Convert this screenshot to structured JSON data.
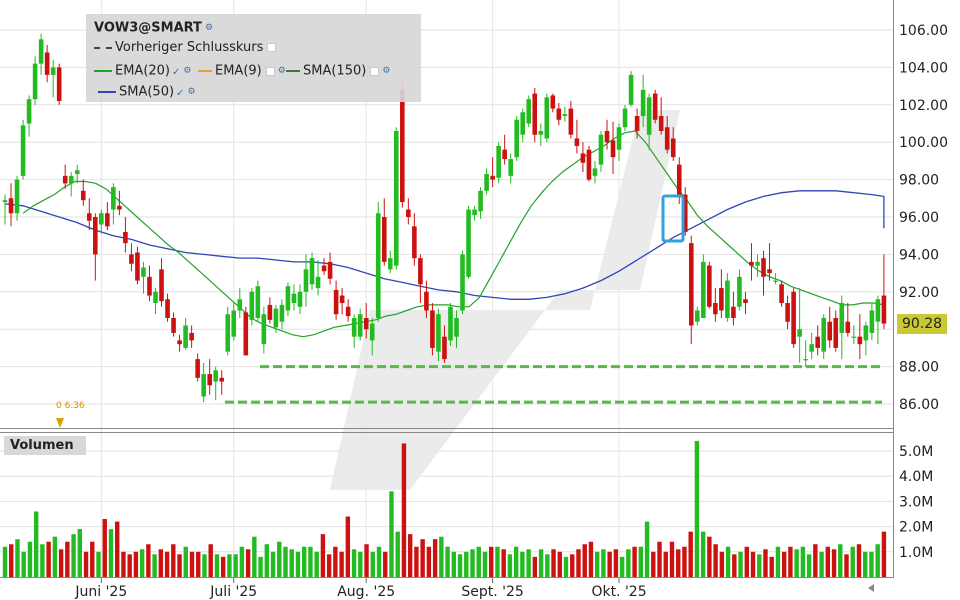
{
  "legend": {
    "symbol": "VOW3@SMART",
    "prev_close": "Vorheriger Schlusskurs",
    "ema20": "EMA(20)",
    "ema9": "EMA(9)",
    "sma150": "SMA(150)",
    "sma50": "SMA(50)"
  },
  "volume_label": "Volumen",
  "last_price_label": "90.28",
  "marker_label": "0 6.36",
  "colors": {
    "up": "#22bb22",
    "down": "#cc1111",
    "sma50": "#2e46b8",
    "ema20": "#22a22a",
    "ema9": "#e8a030",
    "sma150": "#3a7a2a",
    "support": "#55bb44",
    "highlight": "#33a0e0",
    "price_tag": "#c9c934"
  },
  "chart_data": [
    {
      "type": "candlestick",
      "title": "VOW3@SMART",
      "xlabel": "",
      "ylabel": "",
      "ylim": [
        85,
        107
      ],
      "y_ticks": [
        "106.00",
        "104.00",
        "102.00",
        "100.00",
        "98.00",
        "96.00",
        "94.00",
        "92.00",
        "90.00",
        "88.00",
        "86.00"
      ],
      "x_ticks": [
        "Juni '25",
        "Juli '25",
        "Aug. '25",
        "Sept. '25",
        "Okt. '25"
      ],
      "x_tick_index": [
        16,
        38,
        60,
        81,
        102
      ],
      "grid": true,
      "last_value": 90.28,
      "support_levels": [
        88.0,
        86.1
      ],
      "ohlc": [
        [
          96.8,
          97.2,
          95.6,
          96.9
        ],
        [
          97.0,
          97.8,
          95.5,
          96.2
        ],
        [
          96.2,
          98.2,
          95.8,
          98.0
        ],
        [
          98.2,
          101.2,
          98.0,
          100.9
        ],
        [
          101.0,
          102.5,
          100.3,
          102.3
        ],
        [
          102.3,
          104.6,
          102.0,
          104.2
        ],
        [
          104.2,
          105.8,
          103.6,
          105.5
        ],
        [
          104.8,
          105.2,
          103.2,
          103.6
        ],
        [
          103.6,
          104.4,
          102.4,
          104.0
        ],
        [
          104.0,
          104.2,
          102.0,
          102.2
        ],
        [
          98.2,
          98.8,
          97.5,
          97.8
        ],
        [
          97.8,
          98.4,
          97.1,
          98.2
        ],
        [
          98.3,
          98.8,
          97.8,
          98.5
        ],
        [
          97.4,
          98.0,
          96.6,
          96.9
        ],
        [
          96.2,
          97.0,
          95.3,
          95.8
        ],
        [
          96.0,
          96.2,
          92.6,
          94.0
        ],
        [
          95.6,
          96.4,
          95.1,
          96.2
        ],
        [
          96.2,
          96.8,
          95.3,
          95.5
        ],
        [
          96.4,
          97.8,
          95.6,
          97.6
        ],
        [
          96.6,
          97.4,
          96.1,
          96.4
        ],
        [
          95.2,
          96.0,
          94.1,
          94.6
        ],
        [
          94.0,
          94.6,
          93.1,
          93.5
        ],
        [
          94.1,
          94.4,
          92.4,
          92.6
        ],
        [
          92.8,
          93.6,
          91.9,
          93.3
        ],
        [
          92.8,
          93.4,
          91.5,
          91.8
        ],
        [
          91.4,
          92.2,
          90.8,
          92.0
        ],
        [
          93.2,
          93.8,
          91.2,
          91.5
        ],
        [
          91.6,
          91.9,
          90.4,
          90.6
        ],
        [
          90.6,
          90.9,
          89.6,
          89.8
        ],
        [
          89.4,
          89.7,
          88.8,
          89.2
        ],
        [
          89.0,
          90.6,
          88.9,
          90.2
        ],
        [
          89.8,
          90.2,
          89.0,
          89.4
        ],
        [
          88.4,
          88.7,
          87.2,
          87.4
        ],
        [
          86.4,
          88.2,
          86.1,
          87.6
        ],
        [
          87.6,
          88.4,
          86.5,
          87.0
        ],
        [
          87.2,
          88.0,
          86.2,
          87.8
        ],
        [
          87.4,
          87.8,
          86.5,
          87.2
        ],
        [
          88.8,
          91.2,
          88.6,
          90.8
        ],
        [
          89.6,
          91.4,
          89.4,
          91.0
        ],
        [
          91.0,
          92.2,
          90.6,
          91.6
        ],
        [
          90.9,
          91.2,
          88.6,
          88.6
        ],
        [
          90.5,
          92.2,
          90.2,
          92.0
        ],
        [
          90.6,
          92.6,
          90.4,
          92.3
        ],
        [
          89.2,
          91.2,
          88.7,
          90.8
        ],
        [
          91.3,
          91.7,
          90.3,
          90.5
        ],
        [
          90.1,
          91.3,
          89.8,
          91.1
        ],
        [
          90.4,
          91.6,
          90.0,
          91.3
        ],
        [
          91.0,
          92.5,
          90.7,
          92.3
        ],
        [
          91.4,
          92.4,
          91.0,
          91.9
        ],
        [
          91.2,
          92.4,
          90.8,
          92.0
        ],
        [
          92.0,
          94.0,
          91.2,
          93.2
        ],
        [
          92.4,
          94.1,
          92.1,
          93.8
        ],
        [
          92.2,
          93.7,
          91.8,
          92.8
        ],
        [
          93.4,
          93.8,
          92.9,
          93.1
        ],
        [
          93.6,
          94.1,
          92.4,
          92.7
        ],
        [
          92.1,
          92.6,
          90.5,
          90.8
        ],
        [
          91.8,
          92.2,
          90.8,
          91.4
        ],
        [
          91.2,
          91.6,
          90.4,
          90.7
        ],
        [
          89.6,
          90.8,
          89.0,
          90.6
        ],
        [
          89.6,
          91.1,
          89.4,
          90.8
        ],
        [
          90.6,
          91.4,
          89.5,
          90.0
        ],
        [
          89.4,
          90.6,
          88.6,
          90.3
        ],
        [
          90.6,
          96.8,
          90.4,
          96.2
        ],
        [
          96.0,
          97.0,
          93.4,
          93.6
        ],
        [
          93.2,
          94.2,
          93.0,
          93.8
        ],
        [
          93.4,
          100.8,
          93.2,
          100.6
        ],
        [
          102.8,
          103.2,
          96.5,
          96.8
        ],
        [
          96.4,
          97.0,
          95.6,
          96.0
        ],
        [
          95.5,
          96.2,
          93.4,
          93.8
        ],
        [
          93.8,
          94.0,
          91.4,
          92.4
        ],
        [
          92.0,
          92.6,
          90.6,
          91.0
        ],
        [
          91.0,
          91.4,
          88.6,
          89.0
        ],
        [
          88.8,
          91.1,
          88.3,
          90.8
        ],
        [
          89.6,
          90.2,
          88.2,
          88.4
        ],
        [
          89.4,
          91.4,
          89.1,
          91.2
        ],
        [
          89.6,
          91.0,
          89.0,
          90.6
        ],
        [
          91.0,
          94.2,
          90.8,
          94.0
        ],
        [
          92.8,
          96.6,
          92.7,
          96.4
        ],
        [
          96.1,
          96.6,
          95.8,
          96.4
        ],
        [
          96.3,
          97.6,
          95.9,
          97.4
        ],
        [
          97.4,
          98.6,
          97.2,
          98.3
        ],
        [
          98.2,
          99.2,
          97.6,
          98.0
        ],
        [
          98.1,
          100.0,
          97.8,
          99.8
        ],
        [
          99.6,
          100.4,
          98.8,
          99.1
        ],
        [
          98.2,
          99.4,
          97.8,
          99.1
        ],
        [
          99.2,
          101.4,
          99.0,
          101.2
        ],
        [
          100.4,
          101.8,
          100.0,
          101.6
        ],
        [
          101.0,
          102.5,
          100.8,
          102.3
        ],
        [
          102.6,
          102.9,
          100.0,
          100.4
        ],
        [
          100.4,
          101.0,
          99.8,
          100.6
        ],
        [
          100.2,
          102.6,
          100.0,
          102.4
        ],
        [
          102.5,
          102.6,
          101.6,
          101.8
        ],
        [
          101.8,
          102.1,
          100.9,
          101.2
        ],
        [
          101.4,
          101.9,
          101.1,
          101.5
        ],
        [
          101.8,
          102.2,
          100.2,
          100.4
        ],
        [
          100.2,
          101.2,
          99.4,
          99.8
        ],
        [
          99.4,
          100.0,
          98.4,
          98.9
        ],
        [
          99.6,
          99.8,
          97.9,
          98.0
        ],
        [
          98.2,
          99.0,
          97.8,
          98.6
        ],
        [
          98.8,
          100.6,
          98.4,
          100.4
        ],
        [
          100.6,
          101.2,
          99.6,
          100.0
        ],
        [
          100.1,
          101.1,
          98.3,
          99.2
        ],
        [
          99.6,
          101.0,
          99.0,
          100.8
        ],
        [
          100.8,
          102.0,
          100.6,
          101.8
        ],
        [
          102.0,
          103.8,
          101.9,
          103.6
        ],
        [
          101.4,
          101.8,
          100.2,
          100.6
        ],
        [
          101.4,
          103.6,
          100.8,
          102.8
        ],
        [
          100.4,
          102.6,
          99.6,
          102.4
        ],
        [
          102.6,
          102.8,
          101.0,
          101.2
        ],
        [
          101.4,
          102.4,
          100.4,
          100.6
        ],
        [
          100.8,
          101.4,
          99.4,
          99.6
        ],
        [
          100.2,
          100.8,
          99.0,
          99.2
        ],
        [
          98.8,
          99.2,
          96.7,
          97.2
        ],
        [
          97.2,
          97.6,
          95.0,
          95.2
        ],
        [
          94.6,
          95.0,
          89.2,
          90.2
        ],
        [
          90.4,
          91.2,
          90.2,
          91.0
        ],
        [
          90.6,
          94.0,
          90.6,
          93.6
        ],
        [
          93.4,
          93.6,
          91.1,
          91.2
        ],
        [
          91.4,
          92.2,
          90.4,
          90.8
        ],
        [
          92.2,
          93.2,
          90.6,
          91.0
        ],
        [
          90.6,
          93.0,
          90.4,
          92.6
        ],
        [
          91.2,
          92.0,
          90.2,
          90.6
        ],
        [
          91.2,
          93.2,
          91.0,
          92.8
        ],
        [
          91.6,
          92.0,
          90.8,
          91.4
        ],
        [
          93.6,
          94.6,
          92.6,
          93.4
        ],
        [
          93.4,
          94.0,
          92.8,
          93.6
        ],
        [
          93.8,
          94.2,
          91.8,
          92.8
        ],
        [
          93.2,
          94.6,
          92.6,
          93.0
        ],
        [
          92.6,
          93.0,
          92.4,
          92.6
        ],
        [
          92.4,
          92.6,
          91.2,
          91.4
        ],
        [
          91.4,
          91.8,
          90.0,
          90.4
        ],
        [
          92.0,
          92.2,
          89.0,
          89.2
        ],
        [
          89.6,
          92.2,
          88.2,
          90.0
        ],
        [
          88.4,
          89.4,
          88.0,
          88.4
        ],
        [
          88.8,
          89.8,
          88.4,
          89.2
        ],
        [
          89.6,
          90.2,
          88.6,
          89.0
        ],
        [
          88.8,
          90.8,
          88.4,
          90.6
        ],
        [
          90.4,
          91.2,
          89.0,
          89.4
        ],
        [
          90.6,
          91.0,
          88.8,
          89.0
        ],
        [
          89.8,
          91.8,
          88.4,
          91.4
        ],
        [
          90.4,
          91.4,
          89.6,
          89.8
        ],
        [
          89.6,
          90.2,
          89.2,
          89.6
        ],
        [
          89.6,
          90.8,
          88.4,
          89.2
        ],
        [
          89.4,
          90.4,
          88.6,
          90.2
        ],
        [
          89.8,
          91.4,
          89.4,
          91.0
        ],
        [
          90.4,
          91.8,
          89.2,
          91.6
        ],
        [
          91.8,
          94.0,
          90.0,
          90.3
        ]
      ],
      "ema20": [
        96.2,
        96.6,
        96.9,
        97.2,
        97.6,
        97.9,
        97.9,
        97.8,
        97.5,
        97.0,
        96.5,
        96.0,
        95.5,
        95.0,
        94.5,
        94.1,
        93.6,
        93.1,
        92.6,
        92.1,
        91.6,
        91.1,
        90.6,
        90.3,
        90.1,
        89.9,
        89.7,
        89.6,
        89.7,
        89.9,
        90.1,
        90.2,
        90.3,
        90.4,
        90.5,
        90.7,
        90.8,
        91.0,
        91.2,
        91.3,
        91.3,
        91.3,
        91.2,
        91.2,
        91.7,
        92.7,
        93.7,
        94.7,
        95.7,
        96.6,
        97.3,
        97.9,
        98.4,
        98.8,
        99.2,
        99.5,
        99.8,
        100.2,
        100.5,
        100.6,
        100.0,
        99.2,
        98.4,
        97.6,
        96.9,
        96.1,
        95.5,
        95.0,
        94.5,
        94.0,
        93.5,
        93.1,
        92.8,
        92.6,
        92.3,
        92.1,
        91.9,
        91.7,
        91.5,
        91.3,
        91.3,
        91.4,
        91.4,
        91.3
      ],
      "ema20_start": 3,
      "sma50": [
        96.7,
        96.6,
        96.3,
        96.0,
        95.7,
        95.3,
        95.0,
        94.8,
        94.5,
        94.3,
        94.1,
        94.0,
        93.9,
        93.8,
        93.8,
        93.7,
        93.6,
        93.6,
        93.5,
        93.3,
        93.0,
        92.7,
        92.5,
        92.3,
        92.1,
        92.0,
        91.8,
        91.7,
        91.6,
        91.6,
        91.7,
        91.9,
        92.2,
        92.6,
        93.1,
        93.7,
        94.3,
        94.9,
        95.4,
        95.9,
        96.4,
        96.8,
        97.1,
        97.3,
        97.4,
        97.4,
        97.4,
        97.3,
        97.2,
        97.1,
        96.9,
        96.6,
        96.3,
        96.0,
        95.7,
        95.4
      ],
      "sma50_step": 3
    },
    {
      "type": "bar",
      "title": "Volumen",
      "xlabel": "",
      "ylabel": "",
      "ylim": [
        0,
        5.6
      ],
      "y_ticks": [
        "5.0M",
        "4.0M",
        "3.0M",
        "2.0M",
        "1.0M"
      ],
      "values": [
        1.2,
        1.3,
        1.5,
        1.0,
        1.4,
        2.6,
        1.3,
        1.4,
        1.6,
        1.1,
        1.4,
        1.7,
        1.9,
        1.0,
        1.4,
        1.0,
        2.3,
        1.9,
        2.2,
        1.0,
        0.9,
        1.0,
        1.1,
        1.3,
        0.9,
        1.1,
        1.0,
        1.3,
        0.9,
        1.2,
        1.0,
        1.0,
        0.9,
        1.3,
        0.9,
        0.8,
        0.9,
        0.9,
        1.2,
        1.1,
        1.6,
        0.8,
        1.3,
        1.0,
        1.4,
        1.2,
        1.1,
        1.0,
        1.2,
        1.2,
        1.0,
        1.7,
        0.9,
        1.2,
        1.0,
        2.4,
        1.1,
        1.0,
        1.3,
        1.0,
        1.2,
        1.0,
        3.4,
        1.8,
        5.3,
        1.7,
        1.2,
        1.5,
        1.2,
        1.5,
        1.6,
        1.2,
        1.0,
        0.9,
        1.0,
        1.1,
        1.2,
        1.0,
        1.2,
        1.2,
        1.1,
        0.9,
        1.2,
        1.0,
        1.1,
        0.8,
        1.1,
        0.9,
        1.1,
        1.0,
        0.8,
        0.9,
        1.1,
        1.3,
        1.4,
        1.0,
        1.1,
        1.0,
        1.1,
        0.8,
        1.1,
        1.2,
        1.2,
        2.2,
        1.0,
        1.4,
        1.0,
        1.4,
        1.1,
        1.2,
        1.8,
        5.4,
        1.8,
        1.6,
        1.3,
        1.0,
        1.2,
        0.9,
        1.0,
        1.2,
        1.0,
        0.9,
        1.1,
        0.8,
        1.2,
        1.0,
        1.2,
        1.1,
        1.2,
        0.9,
        1.3,
        1.0,
        1.2,
        1.1,
        1.3,
        0.9,
        1.2,
        1.3,
        1.0,
        1.0,
        1.3,
        1.8
      ]
    }
  ]
}
